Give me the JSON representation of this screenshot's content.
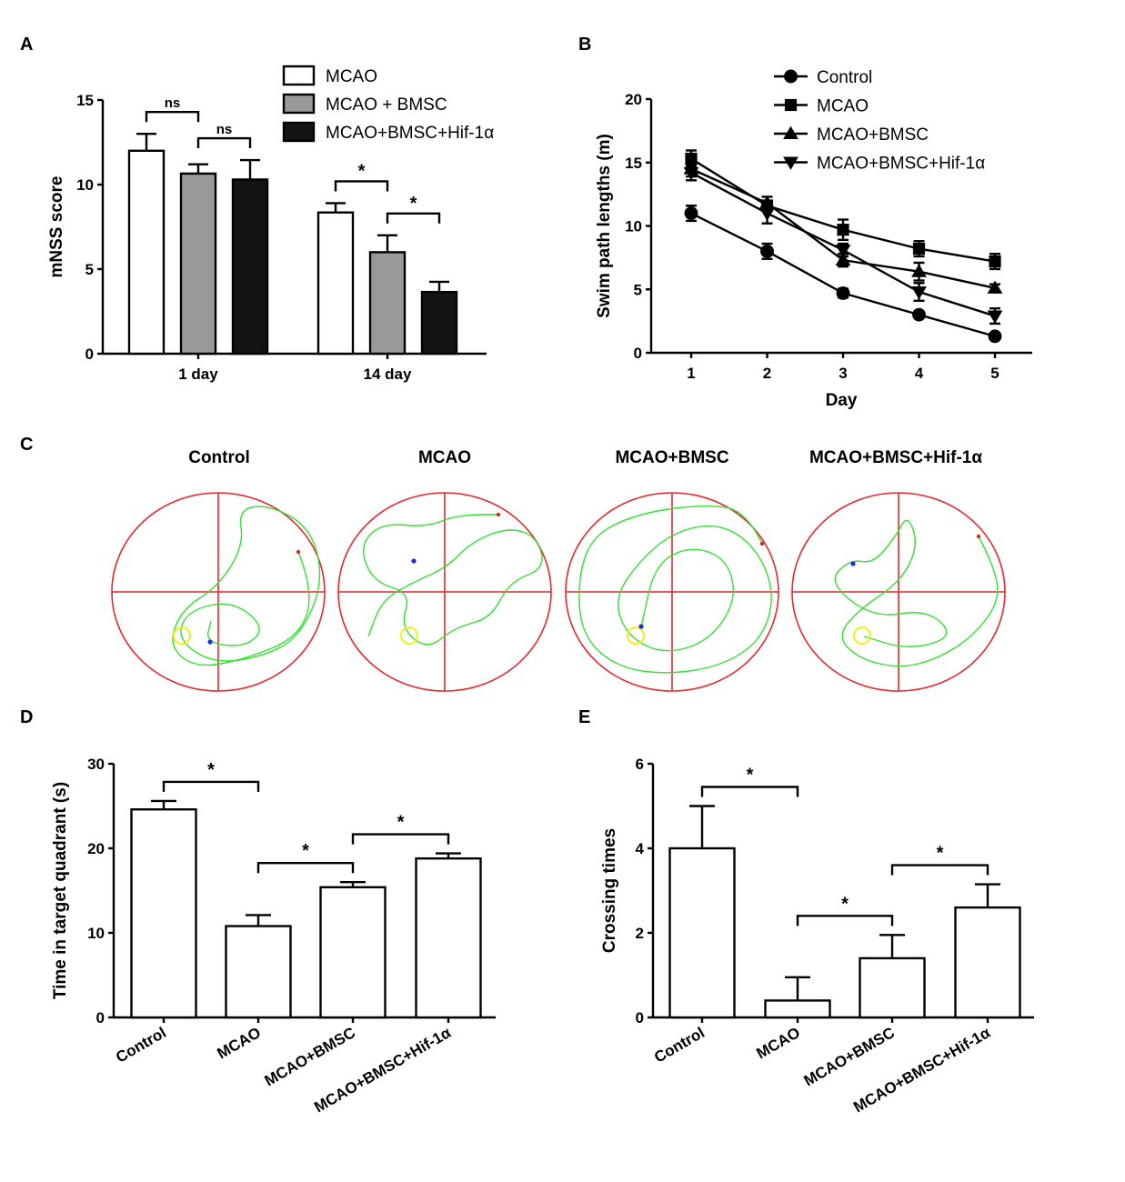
{
  "panels": {
    "a": "A",
    "b": "B",
    "c": "C",
    "d": "D",
    "e": "E"
  },
  "chart_data": [
    {
      "id": "A",
      "type": "bar",
      "ylabel": "mNSS score",
      "ylim": [
        0,
        15
      ],
      "yticks": [
        0,
        5,
        10,
        15
      ],
      "categories": [
        "1 day",
        "14 day"
      ],
      "legend": [
        "MCAO",
        "MCAO + BMSC",
        "MCAO+BMSC+Hif-1α"
      ],
      "colors": [
        "#ffffff",
        "#999999",
        "#141414"
      ],
      "series": [
        {
          "name": "MCAO",
          "values": [
            12.0,
            8.35
          ],
          "errors": [
            1.0,
            0.55
          ]
        },
        {
          "name": "MCAO + BMSC",
          "values": [
            10.65,
            6.0
          ],
          "errors": [
            0.55,
            1.0
          ]
        },
        {
          "name": "MCAO+BMSC+Hif-1α",
          "values": [
            10.3,
            3.65
          ],
          "errors": [
            1.15,
            0.6
          ]
        }
      ],
      "significance": [
        {
          "group": 0,
          "from": 0,
          "to": 1,
          "label": "ns"
        },
        {
          "group": 0,
          "from": 1,
          "to": 2,
          "label": "ns"
        },
        {
          "group": 1,
          "from": 0,
          "to": 1,
          "label": "*"
        },
        {
          "group": 1,
          "from": 1,
          "to": 2,
          "label": "*"
        }
      ]
    },
    {
      "id": "B",
      "type": "line",
      "xlabel": "Day",
      "ylabel": "Swim path lengths (m)",
      "x": [
        1,
        2,
        3,
        4,
        5
      ],
      "xlim": [
        0.5,
        5.5
      ],
      "ylim": [
        0,
        20
      ],
      "yticks": [
        0,
        5,
        10,
        15,
        20
      ],
      "series": [
        {
          "name": "Control",
          "marker": "circle",
          "values": [
            11.0,
            8.0,
            4.7,
            3.0,
            1.3
          ],
          "errors": [
            0.6,
            0.6,
            0.35,
            0.2,
            0.15
          ]
        },
        {
          "name": "MCAO",
          "marker": "square",
          "values": [
            15.3,
            11.6,
            9.7,
            8.2,
            7.2
          ],
          "errors": [
            0.65,
            0.4,
            0.8,
            0.6,
            0.6
          ]
        },
        {
          "name": "MCAO+BMSC",
          "marker": "triangle-up",
          "values": [
            14.5,
            11.8,
            7.3,
            6.4,
            5.1
          ],
          "errors": [
            0.6,
            0.5,
            0.5,
            0.7,
            0.3
          ]
        },
        {
          "name": "MCAO+BMSC+Hif-1α",
          "marker": "triangle-down",
          "values": [
            14.2,
            11.0,
            8.1,
            4.8,
            2.9
          ],
          "errors": [
            0.6,
            0.8,
            0.5,
            0.7,
            0.6
          ]
        }
      ]
    },
    {
      "id": "D",
      "type": "bar",
      "ylabel": "Time in target quadrant (s)",
      "ylim": [
        0,
        30
      ],
      "yticks": [
        0,
        10,
        20,
        30
      ],
      "categories": [
        "Control",
        "MCAO",
        "MCAO+BMSC",
        "MCAO+BMSC+Hif-1α"
      ],
      "values": [
        24.6,
        10.8,
        15.4,
        18.8
      ],
      "errors": [
        1.0,
        1.3,
        0.6,
        0.6
      ],
      "significance": [
        {
          "from": 0,
          "to": 1,
          "label": "*"
        },
        {
          "from": 1,
          "to": 2,
          "label": "*"
        },
        {
          "from": 2,
          "to": 3,
          "label": "*"
        }
      ]
    },
    {
      "id": "E",
      "type": "bar",
      "ylabel": "Crossing times",
      "ylim": [
        0,
        6
      ],
      "yticks": [
        0,
        2,
        4,
        6
      ],
      "categories": [
        "Control",
        "MCAO",
        "MCAO+BMSC",
        "MCAO+BMSC+Hif-1α"
      ],
      "values": [
        4.0,
        0.4,
        1.4,
        2.6
      ],
      "errors": [
        1.0,
        0.55,
        0.55,
        0.55
      ],
      "significance": [
        {
          "from": 0,
          "to": 1,
          "label": "*"
        },
        {
          "from": 1,
          "to": 2,
          "label": "*"
        },
        {
          "from": 2,
          "to": 3,
          "label": "*"
        }
      ]
    }
  ],
  "track_panels": {
    "titles": [
      "Control",
      "MCAO",
      "MCAO+BMSC",
      "MCAO+BMSC+Hif-1α"
    ],
    "colors": {
      "pool": "#e8262b",
      "path": "#33e033",
      "platform": "#f0f01e",
      "start": "#1a2fd6",
      "end": "#c83218"
    }
  }
}
